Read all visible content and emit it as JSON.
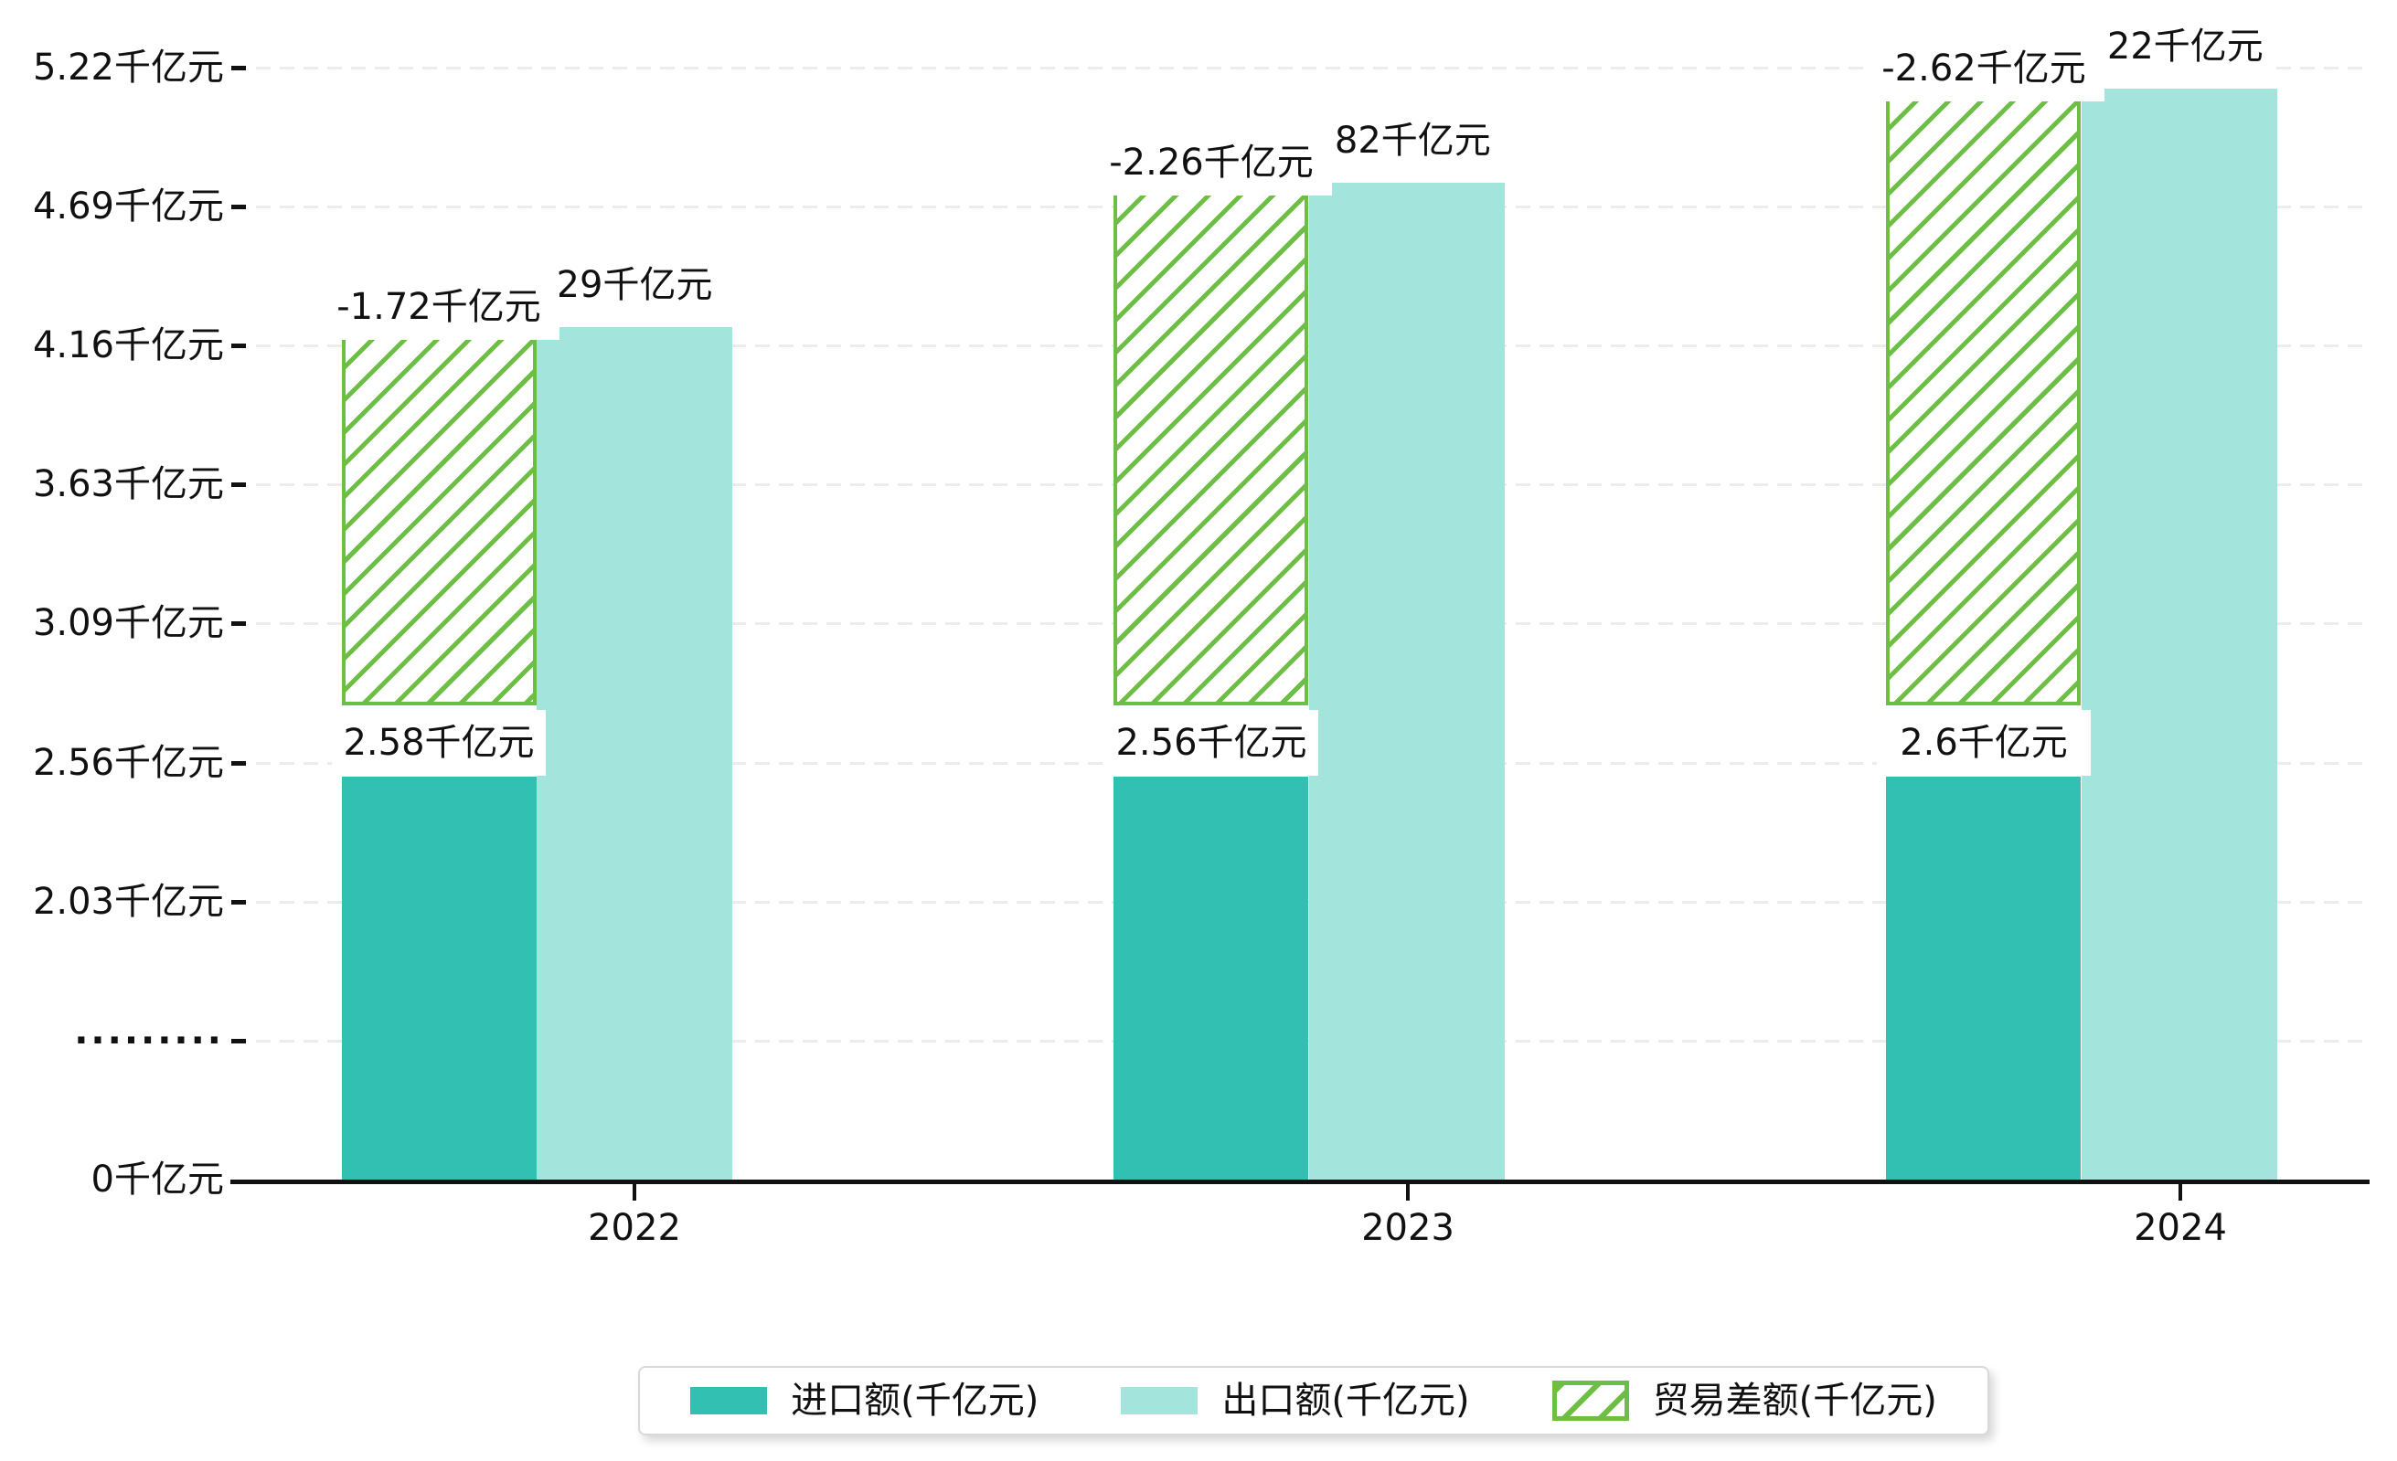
{
  "chart_data": {
    "type": "bar",
    "title": "",
    "categories": [
      "2022",
      "2023",
      "2024"
    ],
    "series": [
      {
        "name": "进口额(千亿元)",
        "values": [
          2.58,
          2.56,
          2.6
        ]
      },
      {
        "name": "出口额(千亿元)",
        "values": [
          4.29,
          4.82,
          5.22
        ]
      },
      {
        "name": "贸易差额(千亿元)",
        "values": [
          -1.72,
          -2.26,
          -2.62
        ]
      }
    ],
    "unit": "千亿元",
    "xlabel": "",
    "ylabel": "",
    "y_ticks": [
      "5.22千亿元",
      "4.69千亿元",
      "4.16千亿元",
      "3.63千亿元",
      "3.09千亿元",
      "2.56千亿元",
      "2.03千亿元",
      "·········",
      "0千亿元"
    ],
    "y_axis_break_between": [
      "0千亿元",
      "2.03千亿元"
    ],
    "grid": "horizontal dashed",
    "legend_position": "bottom",
    "bar_style_note": "trade-balance drawn as green-hatched floating bar stacked above import bar up to export level"
  },
  "axis_y": {
    "labels": [
      "5.22千亿元",
      "4.69千亿元",
      "4.16千亿元",
      "3.63千亿元",
      "3.09千亿元",
      "2.56千亿元",
      "2.03千亿元",
      "·········",
      "0千亿元"
    ]
  },
  "axis_x": {
    "labels": [
      "2022",
      "2023",
      "2024"
    ]
  },
  "groups": [
    {
      "year": "2022",
      "import_label": "2.58千亿元",
      "export_label_visible": "29千亿元",
      "balance_label": "-1.72千亿元"
    },
    {
      "year": "2023",
      "import_label": "2.56千亿元",
      "export_label_visible": ".82千亿元",
      "balance_label": "-2.26千亿元"
    },
    {
      "year": "2024",
      "import_label": "2.6千亿元",
      "export_label_visible": ".22千亿元",
      "balance_label": "-2.62千亿元"
    }
  ],
  "legend": {
    "items": [
      {
        "label": "进口额(千亿元)",
        "swatch": "import-solid"
      },
      {
        "label": "出口额(千亿元)",
        "swatch": "export-solid"
      },
      {
        "label": "贸易差额(千亿元)",
        "swatch": "green-hatched"
      }
    ]
  },
  "colors": {
    "import": "#32c0b2",
    "export": "#a3e4dd",
    "balance_green": "#6cbf44",
    "axis": "#111111",
    "grid": "#ececec",
    "label_text": "#111111",
    "label_bg": "#ffffff",
    "legend_border": "#d9d9d9"
  }
}
